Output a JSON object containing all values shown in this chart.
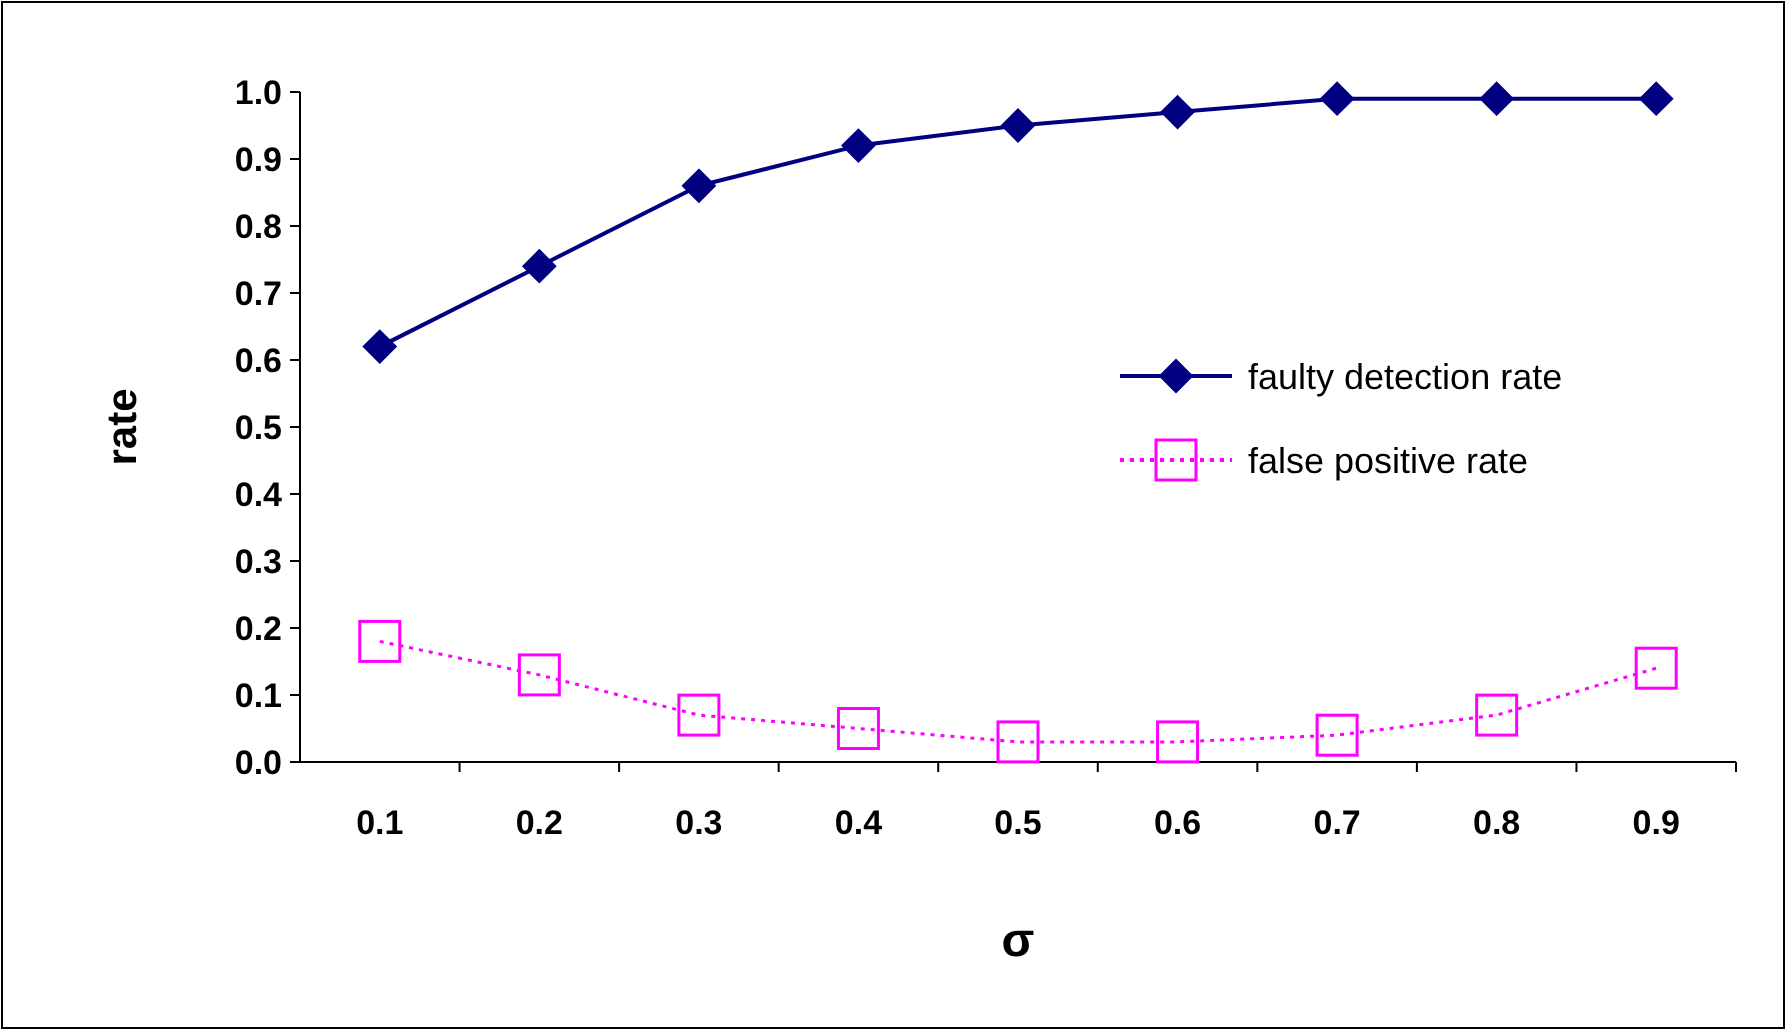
{
  "chart_data": {
    "type": "line",
    "xlabel": "σ",
    "ylabel": "rate",
    "categories": [
      "0.1",
      "0.2",
      "0.3",
      "0.4",
      "0.5",
      "0.6",
      "0.7",
      "0.8",
      "0.9"
    ],
    "ylim": [
      0,
      1
    ],
    "yticks": [
      {
        "value": 0,
        "label": "0.0"
      },
      0.1,
      0.2,
      0.3,
      0.4,
      0.5,
      0.6,
      0.7,
      0.8,
      0.9,
      {
        "value": 1,
        "label": "1.0"
      }
    ],
    "grid": false,
    "legend": "right",
    "series": [
      {
        "name": "faulty detection rate",
        "color": "#000080",
        "marker": "diamond",
        "line_style": "solid",
        "values": [
          0.62,
          0.74,
          0.86,
          0.92,
          0.95,
          0.97,
          0.99,
          0.99,
          0.99
        ]
      },
      {
        "name": "false positive rate",
        "color": "#ff00ff",
        "marker": "square",
        "line_style": "dotted",
        "values": [
          0.18,
          0.13,
          0.07,
          0.05,
          0.03,
          0.03,
          0.04,
          0.07,
          0.14
        ]
      }
    ]
  }
}
